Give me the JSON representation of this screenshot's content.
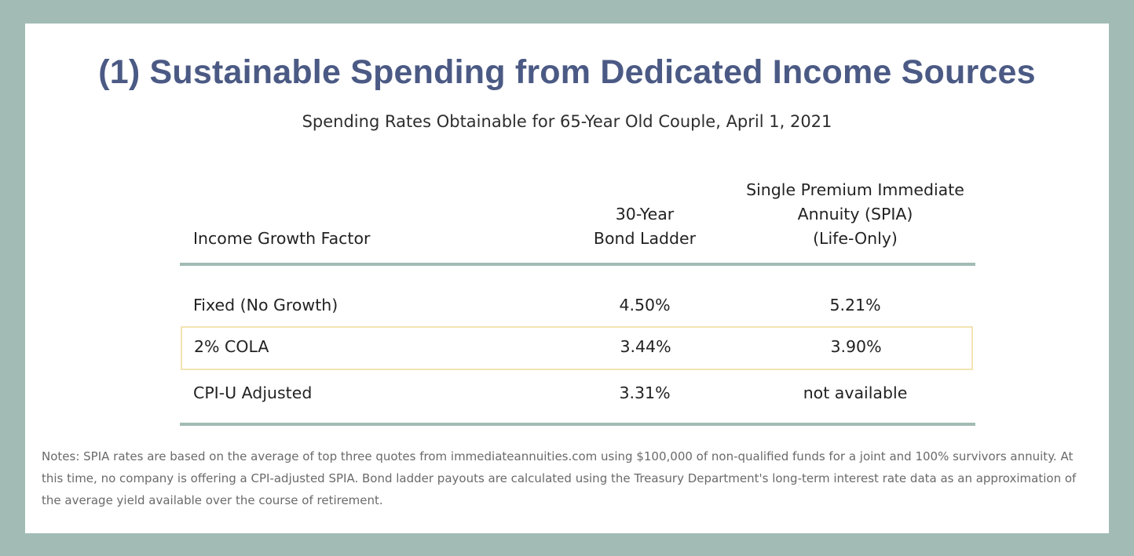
{
  "chart_data": {
    "type": "table",
    "title": "(1) Sustainable Spending from Dedicated Income Sources",
    "subtitle": "Spending Rates Obtainable for 65-Year Old Couple, April 1, 2021",
    "columns": [
      "Income Growth Factor",
      [
        "30-Year",
        "Bond Ladder"
      ],
      [
        "Single Premium Immediate",
        "Annuity (SPIA)",
        "(Life-Only)"
      ]
    ],
    "rows": [
      {
        "factor": "Fixed (No Growth)",
        "bond_ladder": "4.50%",
        "spia": "5.21%"
      },
      {
        "factor": "2% COLA",
        "bond_ladder": "3.44%",
        "spia": "3.90%"
      },
      {
        "factor": "CPI-U Adjusted",
        "bond_ladder": "3.31%",
        "spia": "not available"
      }
    ],
    "highlighted_row": "2% COLA",
    "notes": "Notes: SPIA rates are based on the average of top three quotes from immediateannuities.com using $100,000 of non-qualified funds for a joint and 100% survivors annuity. At this time, no company is offering a CPI-adjusted SPIA. Bond ladder payouts are calculated using the Treasury Department's long-term interest rate data as an approximation of the average yield available over the course of retirement."
  },
  "colors": {
    "frame": "#a2bbb5",
    "title": "#4b5a84",
    "highlight_border": "#f2e4b3"
  }
}
